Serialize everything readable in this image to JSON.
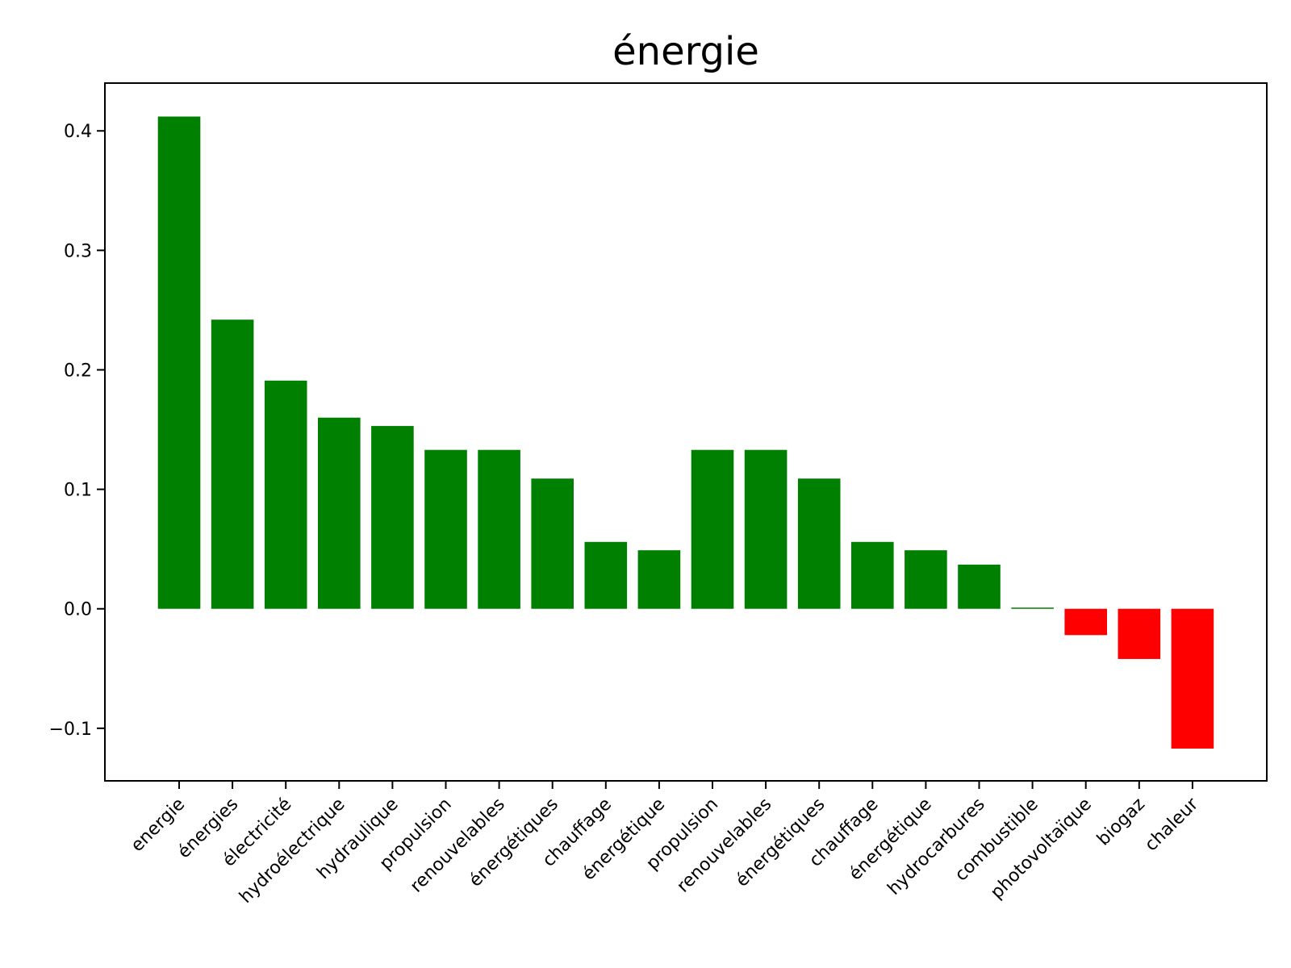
{
  "chart_data": {
    "type": "bar",
    "title": "énergie",
    "xlabel": "",
    "ylabel": "",
    "ylim": [
      -0.144,
      0.44
    ],
    "yticks": [
      0.4,
      0.3,
      0.2,
      0.1,
      0.0,
      -0.1
    ],
    "ytick_labels": [
      "0.4",
      "0.3",
      "0.2",
      "0.1",
      "0.0",
      "−0.1"
    ],
    "grid": false,
    "legend": "none",
    "colors": {
      "positive": "#008000",
      "negative": "#ff0000"
    },
    "categories": [
      "energie",
      "énergies",
      "électricité",
      "hydroélectrique",
      "hydraulique",
      "propulsion",
      "renouvelables",
      "énergétiques",
      "chauffage",
      "énergétique",
      "propulsion",
      "renouvelables",
      "énergétiques",
      "chauffage",
      "énergétique",
      "hydrocarbures",
      "combustible",
      "photovoltaïque",
      "biogaz",
      "chaleur"
    ],
    "values": [
      0.412,
      0.242,
      0.191,
      0.16,
      0.153,
      0.133,
      0.133,
      0.109,
      0.056,
      0.049,
      0.133,
      0.133,
      0.109,
      0.056,
      0.049,
      0.037,
      0.001,
      -0.022,
      -0.042,
      -0.117
    ]
  }
}
